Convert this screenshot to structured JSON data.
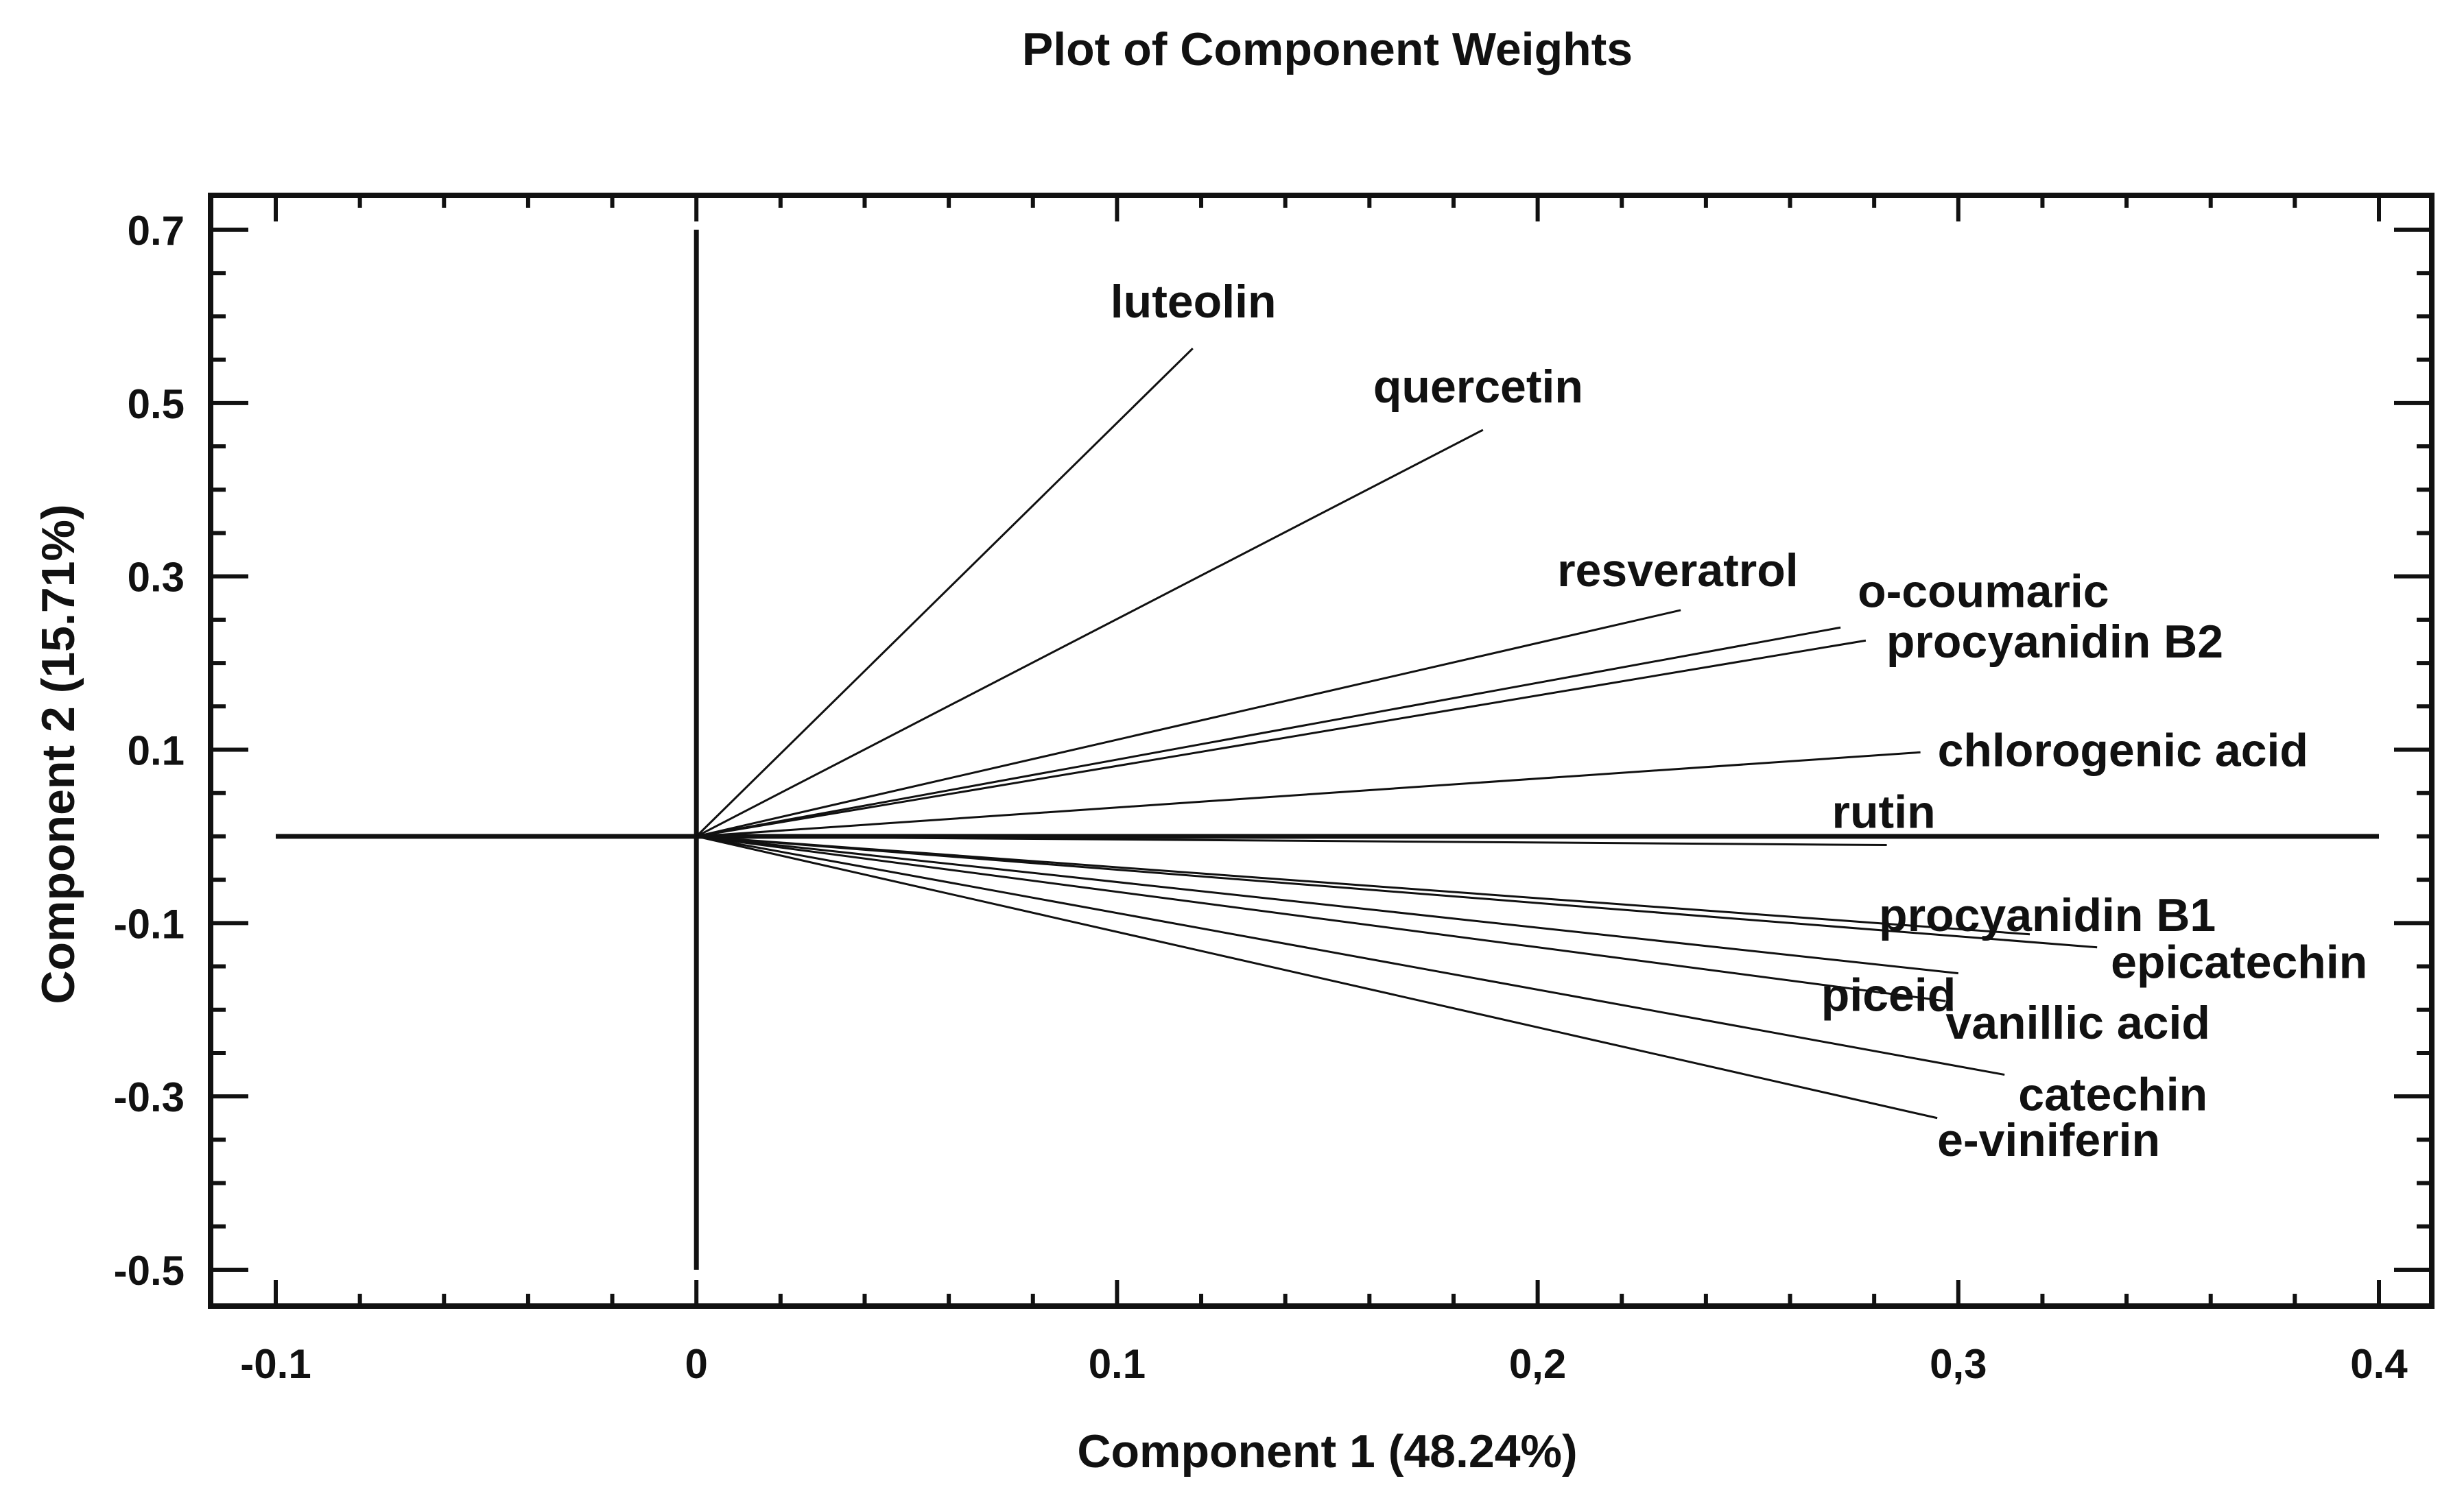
{
  "chart_data": {
    "type": "biplot",
    "title": "Plot of Component Weights",
    "xlabel": "Component 1 (48.24%)",
    "ylabel": "Component 2 (15.71%)",
    "xlim": [
      -0.1,
      0.4
    ],
    "ylim": [
      -0.5,
      0.7
    ],
    "x_ticks": [
      -0.1,
      0,
      0.1,
      0.2,
      0.3,
      0.4
    ],
    "x_tick_labels": [
      "-0.1",
      "0",
      "0.1",
      "0,2",
      "0,3",
      "0.4"
    ],
    "y_ticks": [
      0.7,
      0.5,
      0.3,
      0.1,
      -0.1,
      -0.3,
      -0.5
    ],
    "y_tick_labels": [
      "0.7",
      "0.5",
      "0.3",
      "0.1",
      "-0.1",
      "-0.3",
      "-0.5"
    ],
    "grid": false,
    "line_color": "#111111",
    "vectors": [
      {
        "name": "luteolin",
        "x": 0.118,
        "y": 0.563
      },
      {
        "name": "quercetin",
        "x": 0.187,
        "y": 0.469
      },
      {
        "name": "resveratrol",
        "x": 0.234,
        "y": 0.261
      },
      {
        "name": "o-coumaric",
        "x": 0.272,
        "y": 0.241
      },
      {
        "name": "procyanidin B2",
        "x": 0.278,
        "y": 0.226
      },
      {
        "name": "chlorogenic acid",
        "x": 0.291,
        "y": 0.097
      },
      {
        "name": "rutin",
        "x": 0.283,
        "y": -0.01
      },
      {
        "name": "procyanidin B1",
        "x": 0.317,
        "y": -0.113
      },
      {
        "name": "piceid",
        "x": 0.3,
        "y": -0.158
      },
      {
        "name": "epicatechin",
        "x": 0.333,
        "y": -0.128
      },
      {
        "name": "vanillic acid",
        "x": 0.297,
        "y": -0.19
      },
      {
        "name": "catechin",
        "x": 0.311,
        "y": -0.275
      },
      {
        "name": "e-viniferin",
        "x": 0.295,
        "y": -0.325
      }
    ]
  }
}
